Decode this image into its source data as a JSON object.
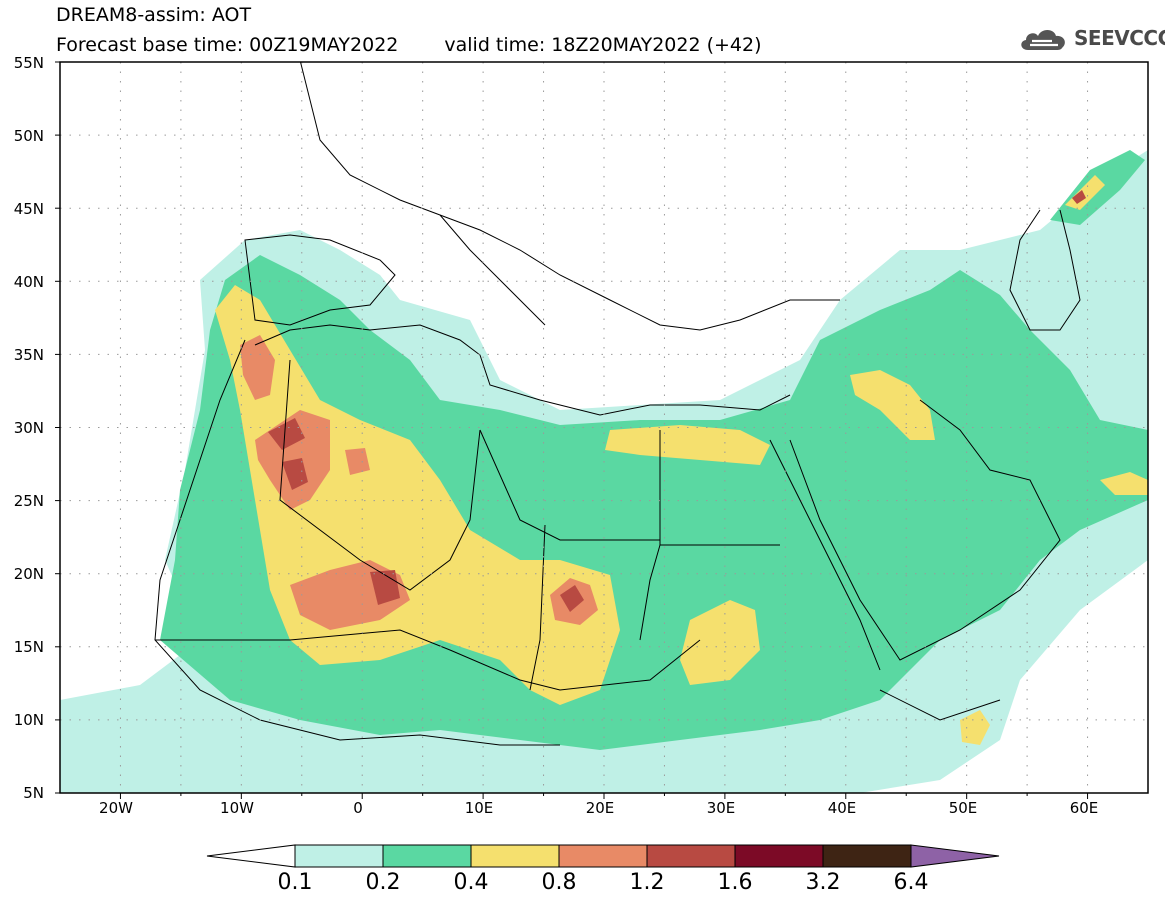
{
  "title": {
    "line1": "DREAM8-assim: AOT",
    "base_time": "Forecast base time: 00Z19MAY2022",
    "valid_time": "valid time: 18Z20MAY2022 (+42)"
  },
  "logo": {
    "text": "SEEVCCC",
    "icon": "cloud-logo-icon"
  },
  "axes": {
    "lat_labels": [
      "55N",
      "50N",
      "45N",
      "40N",
      "35N",
      "30N",
      "25N",
      "20N",
      "15N",
      "10N",
      "5N"
    ],
    "lon_labels": [
      "20W",
      "10W",
      "0",
      "10E",
      "20E",
      "30E",
      "40E",
      "50E",
      "60E"
    ]
  },
  "legend": {
    "labels": [
      "0.1",
      "0.2",
      "0.4",
      "0.8",
      "1.2",
      "1.6",
      "3.2",
      "6.4"
    ],
    "colors": [
      "#ffffff",
      "#bff0e6",
      "#5ad8a2",
      "#f5e06e",
      "#e88a66",
      "#b84a42",
      "#7c0a26",
      "#3e2414",
      "#8e62a6"
    ]
  },
  "map": {
    "field": "Aerosol Optical Thickness",
    "extent_lon": [
      -25,
      65
    ],
    "extent_lat": [
      5,
      55
    ],
    "grid": "dotted 5-degree"
  }
}
